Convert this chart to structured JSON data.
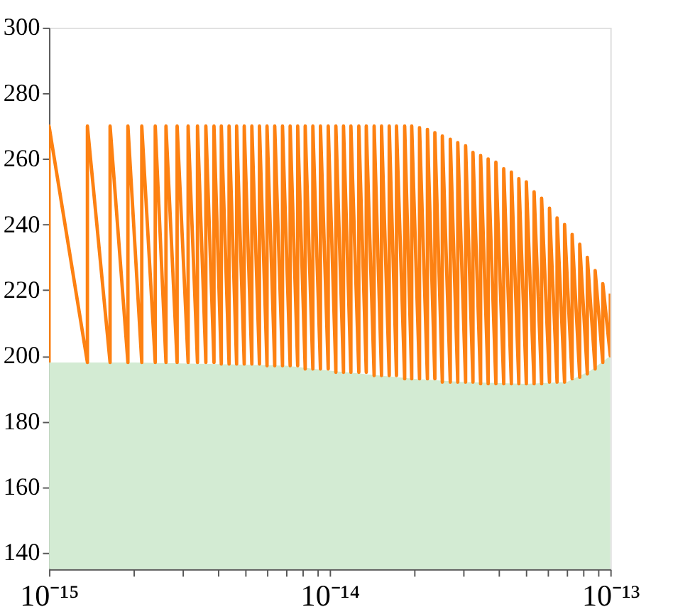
{
  "chart_data": {
    "type": "line",
    "log": "x",
    "grid": false,
    "xlim": [
      1e-15,
      1e-13
    ],
    "ylim": [
      135,
      300
    ],
    "xticks": [
      {
        "value": 1e-15,
        "label": "10⁻¹⁵"
      },
      {
        "value": 2e-15,
        "label": null
      },
      {
        "value": 3e-15,
        "label": null
      },
      {
        "value": 4e-15,
        "label": null
      },
      {
        "value": 5e-15,
        "label": null
      },
      {
        "value": 6e-15,
        "label": null
      },
      {
        "value": 7e-15,
        "label": null
      },
      {
        "value": 8e-15,
        "label": null
      },
      {
        "value": 9e-15,
        "label": null
      },
      {
        "value": 1e-14,
        "label": "10⁻¹⁴"
      },
      {
        "value": 2e-14,
        "label": null
      },
      {
        "value": 3e-14,
        "label": null
      },
      {
        "value": 4e-14,
        "label": null
      },
      {
        "value": 5e-14,
        "label": null
      },
      {
        "value": 6e-14,
        "label": null
      },
      {
        "value": 7e-14,
        "label": null
      },
      {
        "value": 8e-14,
        "label": null
      },
      {
        "value": 9e-14,
        "label": null
      },
      {
        "value": 1e-13,
        "label": "10⁻¹³"
      }
    ],
    "yticks": [
      140,
      160,
      180,
      200,
      220,
      240,
      260,
      280,
      300
    ],
    "series": [
      {
        "type": "area",
        "color": "#d3ebd3",
        "x": [
          1e-15,
          2e-15,
          4e-15,
          7e-15,
          1e-14,
          2e-14,
          3e-14,
          5e-14,
          7e-14,
          8.5e-14,
          1e-13
        ],
        "values": [
          198,
          198,
          197.5,
          197,
          195.5,
          193,
          192,
          191.5,
          192,
          195.5,
          200
        ]
      },
      {
        "color": "#fd8112",
        "x": [
          1e-15,
          1e-15,
          1.37e-15,
          1.37e-15,
          1.65e-15,
          1.65e-15,
          1.91e-15,
          1.91e-15,
          2.14e-15,
          2.14e-15,
          2.39e-15,
          2.39e-15,
          2.61e-15,
          2.61e-15,
          2.86e-15,
          2.86e-15,
          3.13e-15,
          3.13e-15,
          3.38e-15,
          3.38e-15,
          3.62e-15,
          3.62e-15,
          3.87e-15,
          3.87e-15,
          4.11e-15,
          4.11e-15,
          4.38e-15,
          4.38e-15,
          4.66e-15,
          4.66e-15,
          4.96e-15,
          4.96e-15,
          5.28e-15,
          5.28e-15,
          5.62e-15,
          5.62e-15,
          5.98e-15,
          5.98e-15,
          6.37e-15,
          6.37e-15,
          6.79e-15,
          6.79e-15,
          7.23e-15,
          7.23e-15,
          7.69e-15,
          7.69e-15,
          8.18e-15,
          8.18e-15,
          8.71e-15,
          8.71e-15,
          9.27e-15,
          9.27e-15,
          9.88e-15,
          9.88e-15,
          1.052e-14,
          1.052e-14,
          1.12e-14,
          1.12e-14,
          1.19e-14,
          1.19e-14,
          1.27e-14,
          1.27e-14,
          1.35e-14,
          1.35e-14,
          1.44e-14,
          1.44e-14,
          1.53e-14,
          1.53e-14,
          1.63e-14,
          1.63e-14,
          1.73e-14,
          1.73e-14,
          1.85e-14,
          1.85e-14,
          1.96e-14,
          1.96e-14,
          2.09e-14,
          2.09e-14,
          2.23e-14,
          2.23e-14,
          2.37e-14,
          2.37e-14,
          2.52e-14,
          2.52e-14,
          2.69e-14,
          2.69e-14,
          2.86e-14,
          2.86e-14,
          3.05e-14,
          3.05e-14,
          3.24e-14,
          3.24e-14,
          3.45e-14,
          3.45e-14,
          3.67e-14,
          3.67e-14,
          3.91e-14,
          3.91e-14,
          4.17e-14,
          4.17e-14,
          4.44e-14,
          4.44e-14,
          4.72e-14,
          4.72e-14,
          5.02e-14,
          5.02e-14,
          5.35e-14,
          5.35e-14,
          5.69e-14,
          5.69e-14,
          6.07e-14,
          6.07e-14,
          6.46e-14,
          6.46e-14,
          6.87e-14,
          6.87e-14,
          7.31e-14,
          7.31e-14,
          7.78e-14,
          7.78e-14,
          8.28e-14,
          8.28e-14,
          8.83e-14,
          8.83e-14,
          9.4e-14,
          9.4e-14,
          1e-13,
          1e-13
        ],
        "values": [
          198,
          270,
          198,
          270,
          198,
          270,
          198,
          270,
          198,
          270,
          198,
          270,
          198,
          270,
          198,
          270,
          198,
          270,
          198,
          270,
          198,
          270,
          198,
          270,
          197.5,
          270,
          197.5,
          270,
          197.5,
          270,
          197.5,
          270,
          197.5,
          270,
          197.5,
          270,
          197,
          270,
          197,
          270,
          197,
          270,
          197,
          270,
          197,
          270,
          196,
          270,
          196,
          270,
          196,
          270,
          196,
          270,
          195,
          270,
          195,
          270,
          195,
          270,
          195,
          270,
          195,
          270,
          194,
          270,
          194,
          270,
          194,
          270,
          194,
          270,
          193,
          270,
          193,
          270,
          193,
          269.5,
          193,
          269,
          193,
          268,
          192,
          267,
          192,
          266,
          192,
          265,
          192,
          264,
          192,
          262,
          191.5,
          261,
          191.5,
          260,
          191.5,
          259,
          191.5,
          257,
          191.5,
          256,
          191.5,
          254,
          191.5,
          253,
          191.5,
          250,
          191.5,
          248,
          192,
          245,
          192,
          242,
          192,
          240,
          193,
          237,
          193.5,
          234,
          194.5,
          230,
          196,
          226,
          198,
          222,
          200,
          219
        ]
      }
    ]
  }
}
